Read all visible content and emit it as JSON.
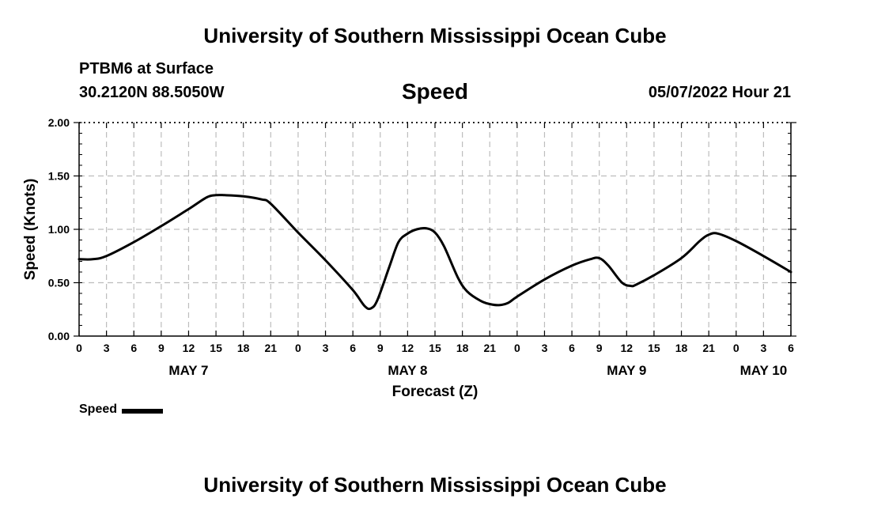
{
  "header": {
    "title": "University of Southern Mississippi Ocean Cube",
    "station": "PTBM6 at Surface",
    "coords": "30.2120N  88.5050W",
    "chart_title": "Speed",
    "datetime": "05/07/2022 Hour 21"
  },
  "footer": {
    "title": "University of Southern Mississippi Ocean Cube"
  },
  "legend": {
    "label": "Speed"
  },
  "chart_data": {
    "type": "line",
    "title": "Speed",
    "xlabel": "Forecast (Z)",
    "ylabel": "Speed (Knots)",
    "ylim": [
      0,
      2
    ],
    "xlim": [
      0,
      78
    ],
    "x_unit": "hours from 00Z May 7",
    "grid": true,
    "y_ticks": [
      {
        "value": 0,
        "label": "0.00"
      },
      {
        "value": 0.5,
        "label": "0.50"
      },
      {
        "value": 1.0,
        "label": "1.00"
      },
      {
        "value": 1.5,
        "label": "1.50"
      },
      {
        "value": 2.0,
        "label": "2.00"
      }
    ],
    "x_ticks": [
      {
        "value": 0,
        "label": "0"
      },
      {
        "value": 3,
        "label": "3"
      },
      {
        "value": 6,
        "label": "6"
      },
      {
        "value": 9,
        "label": "9"
      },
      {
        "value": 12,
        "label": "12"
      },
      {
        "value": 15,
        "label": "15"
      },
      {
        "value": 18,
        "label": "18"
      },
      {
        "value": 21,
        "label": "21"
      },
      {
        "value": 24,
        "label": "0"
      },
      {
        "value": 27,
        "label": "3"
      },
      {
        "value": 30,
        "label": "6"
      },
      {
        "value": 33,
        "label": "9"
      },
      {
        "value": 36,
        "label": "12"
      },
      {
        "value": 39,
        "label": "15"
      },
      {
        "value": 42,
        "label": "18"
      },
      {
        "value": 45,
        "label": "21"
      },
      {
        "value": 48,
        "label": "0"
      },
      {
        "value": 51,
        "label": "3"
      },
      {
        "value": 54,
        "label": "6"
      },
      {
        "value": 57,
        "label": "9"
      },
      {
        "value": 60,
        "label": "12"
      },
      {
        "value": 63,
        "label": "15"
      },
      {
        "value": 66,
        "label": "18"
      },
      {
        "value": 69,
        "label": "21"
      },
      {
        "value": 72,
        "label": "0"
      },
      {
        "value": 75,
        "label": "3"
      },
      {
        "value": 78,
        "label": "6"
      }
    ],
    "date_labels": [
      {
        "value": 12,
        "label": "MAY 7"
      },
      {
        "value": 36,
        "label": "MAY 8"
      },
      {
        "value": 60,
        "label": "MAY 9"
      },
      {
        "value": 75,
        "label": "MAY 10"
      }
    ],
    "series": [
      {
        "name": "Speed",
        "color": "#000000",
        "points": [
          [
            0,
            0.72
          ],
          [
            1.5,
            0.72
          ],
          [
            3,
            0.75
          ],
          [
            6,
            0.88
          ],
          [
            9,
            1.03
          ],
          [
            12,
            1.19
          ],
          [
            14,
            1.3
          ],
          [
            15,
            1.32
          ],
          [
            16,
            1.32
          ],
          [
            18,
            1.31
          ],
          [
            20,
            1.28
          ],
          [
            21,
            1.24
          ],
          [
            24,
            0.97
          ],
          [
            27,
            0.71
          ],
          [
            30,
            0.43
          ],
          [
            31.3,
            0.28
          ],
          [
            32,
            0.26
          ],
          [
            32.7,
            0.34
          ],
          [
            34,
            0.65
          ],
          [
            35,
            0.88
          ],
          [
            36,
            0.96
          ],
          [
            37,
            1.0
          ],
          [
            38,
            1.01
          ],
          [
            39,
            0.97
          ],
          [
            40,
            0.84
          ],
          [
            41.5,
            0.55
          ],
          [
            42.5,
            0.42
          ],
          [
            44,
            0.33
          ],
          [
            45,
            0.3
          ],
          [
            46,
            0.29
          ],
          [
            47,
            0.31
          ],
          [
            48,
            0.37
          ],
          [
            51,
            0.53
          ],
          [
            54,
            0.66
          ],
          [
            56,
            0.72
          ],
          [
            57,
            0.73
          ],
          [
            58,
            0.66
          ],
          [
            59.5,
            0.5
          ],
          [
            60.5,
            0.47
          ],
          [
            61,
            0.48
          ],
          [
            63,
            0.57
          ],
          [
            66,
            0.73
          ],
          [
            68,
            0.89
          ],
          [
            69,
            0.95
          ],
          [
            70,
            0.96
          ],
          [
            72,
            0.89
          ],
          [
            75,
            0.75
          ],
          [
            78,
            0.6
          ]
        ]
      }
    ]
  }
}
